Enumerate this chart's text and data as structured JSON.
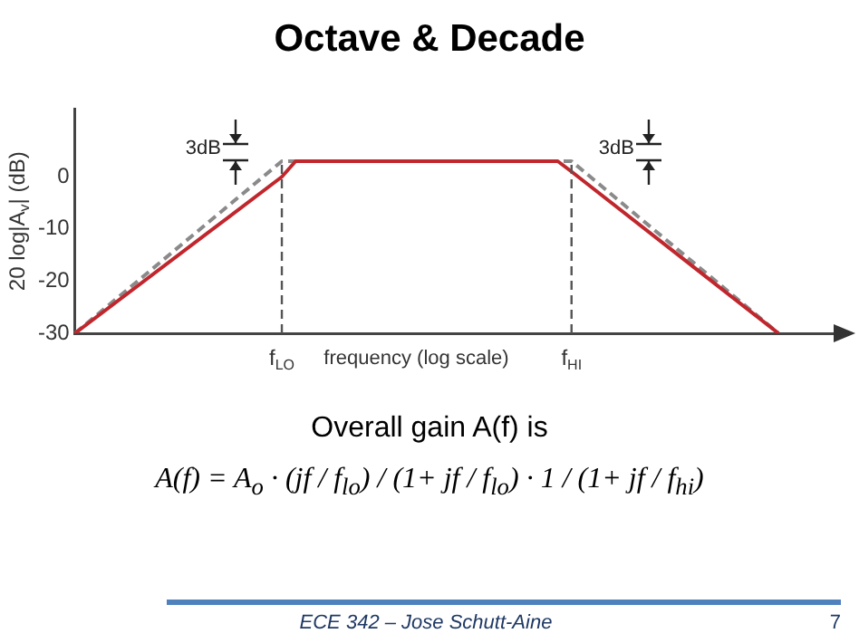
{
  "chart_data": {
    "type": "line",
    "title": "Octave & Decade",
    "xlabel": "frequency (log scale)",
    "ylabel": "20 log|A$_{v}$| (dB)",
    "categories": [
      null,
      null,
      null,
      null,
      null,
      null,
      null,
      null,
      null,
      null,
      null,
      null,
      null,
      null,
      null,
      "f$_{LO}$",
      null,
      null,
      null,
      null,
      null,
      null,
      null,
      null,
      null,
      null,
      null,
      null,
      null,
      null,
      null,
      null,
      null,
      null,
      null,
      null,
      "f$_{HI}$",
      null,
      null,
      null,
      null,
      null,
      null,
      null,
      null,
      null,
      null,
      null,
      null,
      null,
      null,
      null,
      null,
      null,
      null,
      null
    ],
    "series": [
      {
        "color": "#c0272d",
        "line_style": "solid",
        "values": [
          -30,
          null,
          null,
          null,
          null,
          null,
          null,
          null,
          null,
          null,
          null,
          null,
          null,
          null,
          null,
          0,
          3,
          null,
          null,
          null,
          null,
          null,
          null,
          null,
          null,
          null,
          null,
          null,
          null,
          null,
          null,
          null,
          null,
          null,
          null,
          3,
          1,
          null,
          null,
          null,
          null,
          null,
          null,
          null,
          null,
          null,
          null,
          null,
          null,
          null,
          null,
          -30,
          null,
          null,
          null,
          null
        ]
      },
      {
        "color": "#8a8a8a",
        "line_style": "dashed",
        "values": [
          -30,
          null,
          null,
          null,
          null,
          null,
          null,
          null,
          null,
          null,
          null,
          null,
          null,
          null,
          null,
          3,
          null,
          null,
          null,
          null,
          null,
          null,
          null,
          null,
          null,
          null,
          null,
          null,
          null,
          null,
          null,
          null,
          null,
          null,
          null,
          null,
          3,
          null,
          null,
          null,
          null,
          null,
          null,
          null,
          null,
          null,
          null,
          null,
          null,
          null,
          null,
          -30,
          null,
          null,
          null,
          null
        ]
      }
    ],
    "ylim": [
      -30,
      13
    ],
    "yticks": [
      -30,
      -20,
      -10,
      0
    ],
    "ref_lines": [
      {
        "axis": "x",
        "value": "f$_{LO}$",
        "color": "#555555",
        "line_style": "dashed"
      },
      {
        "axis": "x",
        "value": "f$_{HI}$",
        "color": "#555555",
        "line_style": "dashed"
      }
    ],
    "annotations": [
      "3dB",
      "3dB",
      "Overall gain A(f) is",
      "A(f) = A$_{o}$ · (jf / f$_{lo}$) / (1+ jf / f$_{lo}$) · 1 / (1+ jf / f$_{hi}$)",
      "ECE 342 – Jose Schutt-Aine",
      "7"
    ],
    "grid": false,
    "legend": false,
    "marker": "none"
  }
}
